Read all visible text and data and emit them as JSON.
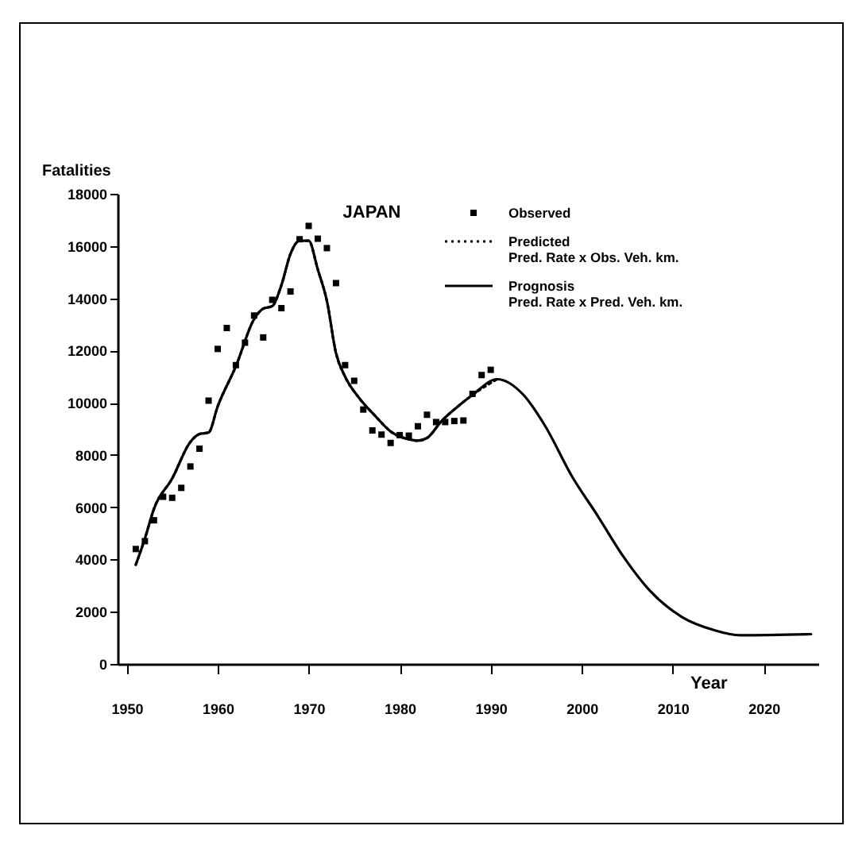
{
  "chart_data": {
    "type": "line",
    "title": "JAPAN",
    "ylabel": "Fatalities",
    "xlabel": "Year",
    "xlim": [
      1949,
      2026
    ],
    "ylim": [
      0,
      18000
    ],
    "xticks": [
      1950,
      1960,
      1970,
      1980,
      1990,
      2000,
      2010,
      2020
    ],
    "yticks": [
      0,
      2000,
      4000,
      6000,
      8000,
      10000,
      12000,
      14000,
      16000,
      18000
    ],
    "legend": "top right",
    "series": [
      {
        "type": "scatter",
        "name": "Observed",
        "color": "#000000",
        "marker": "square",
        "x": [
          1951,
          1952,
          1953,
          1954,
          1955,
          1956,
          1957,
          1958,
          1959,
          1960,
          1961,
          1962,
          1963,
          1964,
          1965,
          1966,
          1967,
          1968,
          1969,
          1970,
          1971,
          1972,
          1973,
          1974,
          1975,
          1976,
          1977,
          1978,
          1979,
          1980,
          1981,
          1982,
          1983,
          1984,
          1985,
          1986,
          1987,
          1988,
          1989,
          1990
        ],
        "values": [
          4400,
          4700,
          5500,
          6400,
          6360,
          6740,
          7560,
          8240,
          10080,
          12060,
          12860,
          11440,
          12300,
          13340,
          12500,
          13940,
          13620,
          14260,
          16260,
          16770,
          16280,
          15920,
          14580,
          11440,
          10840,
          9740,
          8940,
          8780,
          8460,
          8760,
          8740,
          9100,
          9540,
          9260,
          9260,
          9300,
          9320,
          10340,
          11060,
          11260
        ]
      },
      {
        "type": "line",
        "name": "Predicted\nPred. Rate x Obs. Veh. km.",
        "color": "#000000",
        "line_style": "dotted",
        "x": [
          1951,
          1952,
          1953,
          1955,
          1957,
          1958,
          1959,
          1960,
          1962,
          1964,
          1965,
          1966,
          1967,
          1968,
          1969,
          1970,
          1971,
          1972,
          1973,
          1974,
          1975.5,
          1977.3,
          1979,
          1981,
          1982,
          1983,
          1984.6,
          1986.4,
          1988,
          1990.7
        ],
        "values": [
          3800,
          4800,
          5940,
          7100,
          8500,
          8800,
          8860,
          9860,
          11400,
          13200,
          13600,
          13700,
          14500,
          15700,
          16200,
          16200,
          15100,
          13900,
          11900,
          11000,
          10200,
          9500,
          8900,
          8600,
          8550,
          8650,
          9300,
          9860,
          10300,
          10900
        ]
      },
      {
        "type": "line",
        "name": "Prognosis\nPred. Rate x Pred. Veh. km.",
        "color": "#000000",
        "line_style": "solid",
        "x": [
          1951,
          1952,
          1953,
          1955,
          1957,
          1958,
          1959,
          1960,
          1962,
          1964,
          1965,
          1966,
          1967,
          1968,
          1969,
          1970,
          1971,
          1972,
          1973,
          1974,
          1975.5,
          1977.3,
          1979,
          1981,
          1982,
          1983,
          1984.6,
          1986.4,
          1988,
          1990.7,
          1993.6,
          1996,
          1998.9,
          2001.7,
          2004.6,
          2007.5,
          2011,
          2014.5,
          2017.4,
          2025.2
        ],
        "values": [
          3800,
          4800,
          5940,
          7100,
          8500,
          8800,
          8860,
          9860,
          11400,
          13200,
          13600,
          13700,
          14500,
          15700,
          16200,
          16200,
          15100,
          13900,
          11900,
          11000,
          10200,
          9500,
          8900,
          8600,
          8550,
          8650,
          9300,
          9860,
          10300,
          10900,
          10300,
          9100,
          7200,
          5700,
          4100,
          2800,
          1800,
          1300,
          1100,
          1140
        ]
      }
    ]
  }
}
